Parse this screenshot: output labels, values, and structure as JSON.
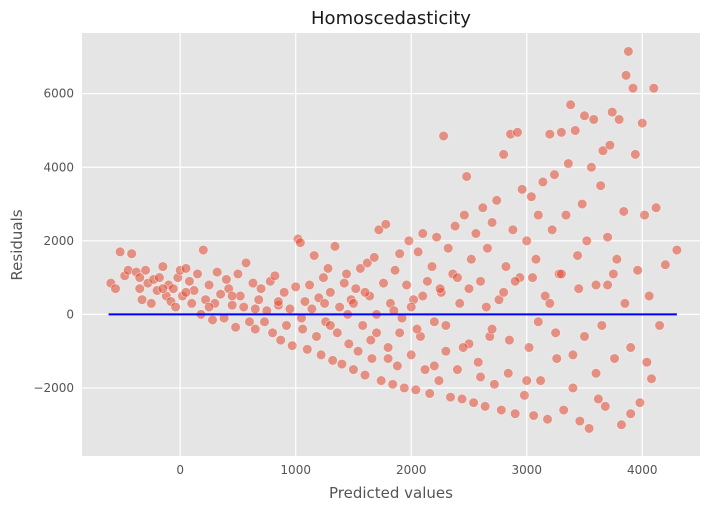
{
  "chart_data": {
    "type": "scatter",
    "title": "Homoscedasticity",
    "xlabel": "Predicted values",
    "ylabel": "Residuals",
    "xlim": [
      -850,
      4500
    ],
    "ylim": [
      -3850,
      7650
    ],
    "xticks": [
      0,
      1000,
      2000,
      3000,
      4000
    ],
    "yticks": [
      -2000,
      0,
      2000,
      4000,
      6000
    ],
    "xtick_labels": [
      "0",
      "1000",
      "2000",
      "3000",
      "4000"
    ],
    "ytick_labels": [
      "−2000",
      "0",
      "2000",
      "4000",
      "6000"
    ],
    "grid": true,
    "legend": false,
    "colors": {
      "points": "#E24A33",
      "reference_line": "#0000ff",
      "background": "#e5e5e5"
    },
    "reference_line": {
      "y": 0,
      "x_start": -620,
      "x_end": 4300
    },
    "series": [
      {
        "points": [
          [
            -600,
            850
          ],
          [
            -560,
            700
          ],
          [
            -520,
            1700
          ],
          [
            -480,
            1050
          ],
          [
            -450,
            1200
          ],
          [
            -420,
            1650
          ],
          [
            -380,
            1150
          ],
          [
            -350,
            700
          ],
          [
            -330,
            400
          ],
          [
            -300,
            1200
          ],
          [
            -280,
            850
          ],
          [
            -250,
            300
          ],
          [
            -230,
            950
          ],
          [
            -200,
            650
          ],
          [
            -180,
            1000
          ],
          [
            -150,
            1300
          ],
          [
            -120,
            500
          ],
          [
            -100,
            800
          ],
          [
            -80,
            350
          ],
          [
            -60,
            700
          ],
          [
            -40,
            200
          ],
          [
            -20,
            1000
          ],
          [
            0,
            1200
          ],
          [
            20,
            500
          ],
          [
            50,
            1250
          ],
          [
            80,
            900
          ],
          [
            100,
            300
          ],
          [
            120,
            650
          ],
          [
            150,
            1100
          ],
          [
            180,
            0
          ],
          [
            200,
            1750
          ],
          [
            220,
            400
          ],
          [
            250,
            800
          ],
          [
            280,
            -150
          ],
          [
            300,
            300
          ],
          [
            320,
            1150
          ],
          [
            350,
            550
          ],
          [
            380,
            -100
          ],
          [
            400,
            950
          ],
          [
            420,
            700
          ],
          [
            450,
            250
          ],
          [
            480,
            -350
          ],
          [
            500,
            1100
          ],
          [
            520,
            500
          ],
          [
            550,
            200
          ],
          [
            570,
            1400
          ],
          [
            600,
            -200
          ],
          [
            630,
            850
          ],
          [
            650,
            -400
          ],
          [
            680,
            400
          ],
          [
            700,
            700
          ],
          [
            730,
            -200
          ],
          [
            750,
            100
          ],
          [
            780,
            900
          ],
          [
            800,
            -500
          ],
          [
            820,
            1050
          ],
          [
            850,
            250
          ],
          [
            870,
            -700
          ],
          [
            900,
            600
          ],
          [
            920,
            -300
          ],
          [
            950,
            150
          ],
          [
            970,
            -850
          ],
          [
            1000,
            750
          ],
          [
            1020,
            2050
          ],
          [
            1040,
            1950
          ],
          [
            1060,
            -400
          ],
          [
            1080,
            350
          ],
          [
            1100,
            -950
          ],
          [
            1120,
            800
          ],
          [
            1140,
            150
          ],
          [
            1160,
            1600
          ],
          [
            1180,
            -600
          ],
          [
            1200,
            450
          ],
          [
            1220,
            -1100
          ],
          [
            1240,
            1000
          ],
          [
            1260,
            -200
          ],
          [
            1280,
            1250
          ],
          [
            1300,
            600
          ],
          [
            1320,
            -1250
          ],
          [
            1340,
            1850
          ],
          [
            1360,
            -500
          ],
          [
            1380,
            200
          ],
          [
            1400,
            -1350
          ],
          [
            1420,
            850
          ],
          [
            1440,
            1100
          ],
          [
            1460,
            -800
          ],
          [
            1480,
            400
          ],
          [
            1500,
            -1500
          ],
          [
            1520,
            700
          ],
          [
            1540,
            -1000
          ],
          [
            1560,
            1250
          ],
          [
            1580,
            -300
          ],
          [
            1600,
            -1650
          ],
          [
            1620,
            1400
          ],
          [
            1640,
            500
          ],
          [
            1660,
            -1200
          ],
          [
            1680,
            1550
          ],
          [
            1700,
            -500
          ],
          [
            1720,
            2300
          ],
          [
            1740,
            -1800
          ],
          [
            1760,
            850
          ],
          [
            1780,
            2450
          ],
          [
            1800,
            -900
          ],
          [
            1820,
            300
          ],
          [
            1840,
            -1900
          ],
          [
            1860,
            1200
          ],
          [
            1880,
            -1400
          ],
          [
            1900,
            1650
          ],
          [
            1920,
            -100
          ],
          [
            1940,
            -2000
          ],
          [
            1960,
            800
          ],
          [
            1980,
            2000
          ],
          [
            2000,
            -1100
          ],
          [
            2020,
            400
          ],
          [
            2040,
            -2050
          ],
          [
            2060,
            1700
          ],
          [
            2080,
            -600
          ],
          [
            2100,
            2200
          ],
          [
            2120,
            -1500
          ],
          [
            2140,
            900
          ],
          [
            2160,
            -2150
          ],
          [
            2180,
            1300
          ],
          [
            2200,
            -200
          ],
          [
            2220,
            2100
          ],
          [
            2240,
            -1800
          ],
          [
            2260,
            600
          ],
          [
            2280,
            4850
          ],
          [
            2300,
            -1000
          ],
          [
            2320,
            1800
          ],
          [
            2340,
            -2250
          ],
          [
            2360,
            1100
          ],
          [
            2380,
            2400
          ],
          [
            2400,
            -1500
          ],
          [
            2420,
            300
          ],
          [
            2440,
            -2300
          ],
          [
            2460,
            2700
          ],
          [
            2480,
            3750
          ],
          [
            2500,
            -800
          ],
          [
            2520,
            1500
          ],
          [
            2540,
            -2400
          ],
          [
            2560,
            2200
          ],
          [
            2580,
            -1300
          ],
          [
            2600,
            900
          ],
          [
            2620,
            2900
          ],
          [
            2640,
            -2500
          ],
          [
            2660,
            1800
          ],
          [
            2680,
            -600
          ],
          [
            2700,
            2500
          ],
          [
            2720,
            -1900
          ],
          [
            2740,
            3100
          ],
          [
            2760,
            400
          ],
          [
            2780,
            -2600
          ],
          [
            2800,
            4350
          ],
          [
            2820,
            1300
          ],
          [
            2840,
            -1600
          ],
          [
            2860,
            4900
          ],
          [
            2880,
            2300
          ],
          [
            2900,
            -2700
          ],
          [
            2920,
            4950
          ],
          [
            2940,
            1000
          ],
          [
            2960,
            3400
          ],
          [
            2980,
            -2200
          ],
          [
            3000,
            2000
          ],
          [
            3020,
            -900
          ],
          [
            3040,
            3200
          ],
          [
            3060,
            -2750
          ],
          [
            3080,
            1500
          ],
          [
            3100,
            2700
          ],
          [
            3120,
            -1800
          ],
          [
            3140,
            3600
          ],
          [
            3160,
            500
          ],
          [
            3180,
            -2850
          ],
          [
            3200,
            4900
          ],
          [
            3220,
            2300
          ],
          [
            3240,
            3800
          ],
          [
            3260,
            -1200
          ],
          [
            3280,
            1100
          ],
          [
            3300,
            4950
          ],
          [
            3320,
            -2600
          ],
          [
            3340,
            2700
          ],
          [
            3360,
            4100
          ],
          [
            3380,
            5700
          ],
          [
            3400,
            -2000
          ],
          [
            3420,
            5000
          ],
          [
            3440,
            1600
          ],
          [
            3460,
            -2900
          ],
          [
            3480,
            3000
          ],
          [
            3500,
            5400
          ],
          [
            3520,
            2000
          ],
          [
            3540,
            -3100
          ],
          [
            3560,
            4000
          ],
          [
            3580,
            5300
          ],
          [
            3600,
            800
          ],
          [
            3620,
            -2300
          ],
          [
            3640,
            3500
          ],
          [
            3660,
            4450
          ],
          [
            3680,
            -2500
          ],
          [
            3700,
            2100
          ],
          [
            3720,
            4600
          ],
          [
            3740,
            5500
          ],
          [
            3760,
            -1200
          ],
          [
            3780,
            1500
          ],
          [
            3800,
            5300
          ],
          [
            3820,
            -3000
          ],
          [
            3840,
            2800
          ],
          [
            3860,
            6500
          ],
          [
            3880,
            7150
          ],
          [
            3900,
            -2700
          ],
          [
            3920,
            6150
          ],
          [
            3940,
            4350
          ],
          [
            3960,
            1200
          ],
          [
            3980,
            -2400
          ],
          [
            4000,
            5200
          ],
          [
            4020,
            2700
          ],
          [
            4040,
            -1300
          ],
          [
            4060,
            500
          ],
          [
            4080,
            -1750
          ],
          [
            4100,
            6150
          ],
          [
            4120,
            2900
          ],
          [
            4150,
            -300
          ],
          [
            4200,
            1350
          ],
          [
            4300,
            1750
          ],
          [
            1500,
            300
          ],
          [
            1700,
            0
          ],
          [
            1900,
            -500
          ],
          [
            2100,
            500
          ],
          [
            2300,
            -300
          ],
          [
            2500,
            700
          ],
          [
            2700,
            -400
          ],
          [
            2900,
            900
          ],
          [
            3100,
            -200
          ],
          [
            3300,
            1100
          ],
          [
            3500,
            -600
          ],
          [
            3700,
            800
          ],
          [
            1300,
            -300
          ],
          [
            1600,
            600
          ],
          [
            1800,
            -1200
          ],
          [
            2000,
            200
          ],
          [
            2200,
            -1400
          ],
          [
            2400,
            1000
          ],
          [
            2600,
            -1700
          ],
          [
            2800,
            600
          ],
          [
            3000,
            -1800
          ],
          [
            3200,
            300
          ],
          [
            3400,
            -1100
          ],
          [
            3600,
            -1600
          ],
          [
            3900,
            -900
          ],
          [
            3850,
            300
          ],
          [
            3750,
            1100
          ],
          [
            3650,
            -300
          ],
          [
            3450,
            700
          ],
          [
            3250,
            -500
          ],
          [
            3050,
            1000
          ],
          [
            2850,
            -700
          ],
          [
            2650,
            200
          ],
          [
            2450,
            -900
          ],
          [
            2250,
            700
          ],
          [
            2050,
            -400
          ],
          [
            1850,
            100
          ],
          [
            1650,
            -700
          ],
          [
            1450,
            0
          ],
          [
            1250,
            300
          ],
          [
            1050,
            -100
          ],
          [
            850,
            350
          ],
          [
            650,
            150
          ],
          [
            450,
            500
          ],
          [
            250,
            200
          ],
          [
            50,
            600
          ],
          [
            -150,
            700
          ],
          [
            -350,
            1000
          ]
        ]
      }
    ]
  }
}
